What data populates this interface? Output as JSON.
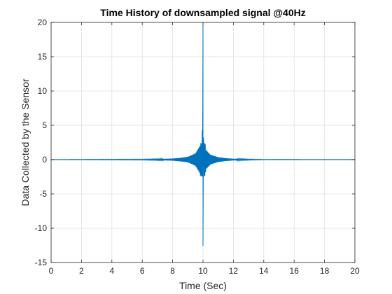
{
  "chart_data": {
    "type": "line",
    "title": "Time History of downsampled signal @40Hz",
    "xlabel": "Time (Sec)",
    "ylabel": "Data Collected by the Sensor",
    "xlim": [
      0,
      20
    ],
    "ylim": [
      -15,
      20
    ],
    "xticks": [
      0,
      2,
      4,
      6,
      8,
      10,
      12,
      14,
      16,
      18,
      20
    ],
    "yticks": [
      -15,
      -10,
      -5,
      0,
      5,
      10,
      15,
      20
    ],
    "grid": true,
    "sample_rate_hz": 40,
    "series": [
      {
        "color": "#0072BD",
        "peaks": [
          {
            "x": 10.0,
            "y": 20.0
          },
          {
            "x": 10.0,
            "y": -12.6
          },
          {
            "x": 9.95,
            "y": 4.3
          },
          {
            "x": 9.95,
            "y": -2.5
          }
        ],
        "envelope": {
          "x": [
            0,
            6,
            7,
            8,
            8.5,
            9,
            9.5,
            9.8,
            9.95,
            10.0,
            10.05,
            10.2,
            10.5,
            11,
            11.5,
            12,
            13,
            14,
            20
          ],
          "amplitude": [
            0.02,
            0.05,
            0.08,
            0.15,
            0.25,
            0.4,
            0.9,
            2.0,
            4.3,
            20.0,
            4.0,
            1.4,
            0.7,
            0.35,
            0.2,
            0.12,
            0.06,
            0.03,
            0.02
          ]
        }
      }
    ]
  }
}
